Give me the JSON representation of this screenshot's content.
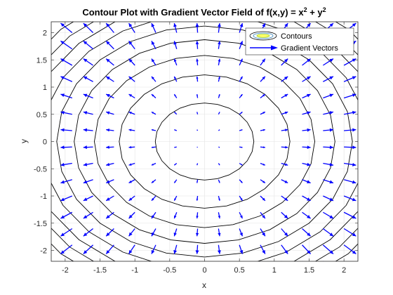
{
  "chart_data": {
    "type": "contour",
    "title": "Contour Plot with Gradient Vector Field of f(x,y) = x",
    "title_sup1": "2",
    "title_mid": " + y",
    "title_sup2": "2",
    "xlabel": "x",
    "ylabel": "y",
    "xlim": [
      -2.2,
      2.2
    ],
    "ylim": [
      -2.2,
      2.2
    ],
    "xticks": [
      -2,
      -1.5,
      -1,
      -0.5,
      0,
      0.5,
      1,
      1.5,
      2
    ],
    "yticks": [
      -2,
      -1.5,
      -1,
      -0.5,
      0,
      0.5,
      1,
      1.5,
      2
    ],
    "xtick_labels": [
      "-2",
      "-1.5",
      "-1",
      "-0.5",
      "0",
      "0.5",
      "1",
      "1.5",
      "2"
    ],
    "ytick_labels": [
      "-2",
      "-1.5",
      "-1",
      "-0.5",
      "0",
      "0.5",
      "1",
      "1.5",
      "2"
    ],
    "grid": true,
    "legend_position": "top-right",
    "contour_levels": [
      0.5,
      1.5,
      2.5,
      3.5,
      4.5,
      5.5,
      6.5,
      7.5,
      8.5
    ],
    "vector_grid": {
      "x": [
        -2.2,
        -1.9,
        -1.6,
        -1.3,
        -1.0,
        -0.7,
        -0.4,
        -0.1,
        0.2,
        0.5,
        0.8,
        1.1,
        1.4,
        1.7,
        2.0
      ],
      "y": [
        -2.2,
        -1.9,
        -1.6,
        -1.3,
        -1.0,
        -0.7,
        -0.4,
        -0.1,
        0.2,
        0.5,
        0.8,
        1.1,
        1.4,
        1.7,
        2.0
      ],
      "gradient": "2x, 2y"
    },
    "series": [
      {
        "name": "Contours",
        "color": "#000000"
      },
      {
        "name": "Gradient Vectors",
        "color": "#0000ff"
      }
    ]
  }
}
